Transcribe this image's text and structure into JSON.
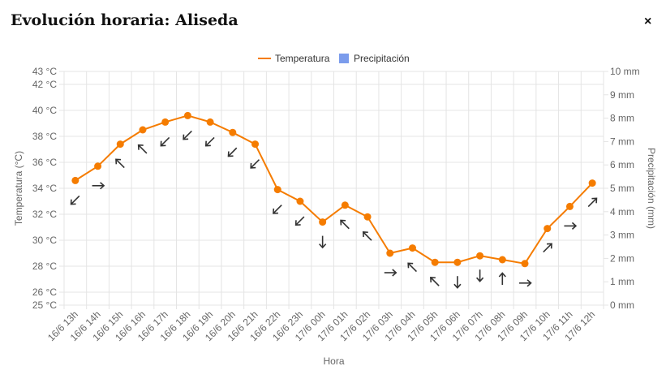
{
  "dialog": {
    "title": "Evolución horaria: Aliseda",
    "close_label": "×"
  },
  "chart_data": {
    "type": "line",
    "xlabel": "Hora",
    "categories": [
      "16/6 13h",
      "16/6 14h",
      "16/6 15h",
      "16/6 16h",
      "16/6 17h",
      "16/6 18h",
      "16/6 19h",
      "16/6 20h",
      "16/6 21h",
      "16/6 22h",
      "16/6 23h",
      "17/6 00h",
      "17/6 01h",
      "17/6 02h",
      "17/6 03h",
      "17/6 04h",
      "17/6 05h",
      "17/6 06h",
      "17/6 07h",
      "17/6 08h",
      "17/6 09h",
      "17/6 10h",
      "17/6 11h",
      "17/6 12h"
    ],
    "series": [
      {
        "name": "Temperatura",
        "axis": "left",
        "color": "#f57c00",
        "values": [
          34.6,
          35.7,
          37.4,
          38.5,
          39.1,
          39.6,
          39.1,
          38.3,
          37.4,
          33.9,
          33.0,
          31.4,
          32.7,
          31.8,
          29.0,
          29.4,
          28.3,
          28.3,
          28.8,
          28.5,
          28.2,
          30.9,
          32.6,
          34.4
        ]
      },
      {
        "name": "Precipitación",
        "axis": "right",
        "color": "#7b9cec",
        "values": [
          0,
          0,
          0,
          0,
          0,
          0,
          0,
          0,
          0,
          0,
          0,
          0,
          0,
          0,
          0,
          0,
          0,
          0,
          0,
          0,
          0,
          0,
          0,
          0
        ]
      }
    ],
    "wind_directions_deg": [
      225,
      90,
      315,
      315,
      225,
      225,
      225,
      225,
      225,
      225,
      225,
      180,
      315,
      315,
      90,
      315,
      315,
      180,
      180,
      0,
      90,
      45,
      90,
      45
    ],
    "y_left": {
      "label": "Temperatura (°C)",
      "range": [
        25,
        43
      ],
      "ticks": [
        25,
        26,
        28,
        30,
        32,
        34,
        36,
        38,
        40,
        42,
        43
      ],
      "tick_labels": [
        "25 °C",
        "26 °C",
        "28 °C",
        "30 °C",
        "32 °C",
        "34 °C",
        "36 °C",
        "38 °C",
        "40 °C",
        "42 °C",
        "43 °C"
      ]
    },
    "y_right": {
      "label": "Precipitación (mm)",
      "range": [
        0,
        10
      ],
      "ticks": [
        0,
        1,
        2,
        3,
        4,
        5,
        6,
        7,
        8,
        9,
        10
      ],
      "tick_labels": [
        "0 mm",
        "1 mm",
        "2 mm",
        "3 mm",
        "4 mm",
        "5 mm",
        "6 mm",
        "7 mm",
        "8 mm",
        "9 mm",
        "10 mm"
      ]
    },
    "grid": true,
    "legend": "top-center"
  }
}
